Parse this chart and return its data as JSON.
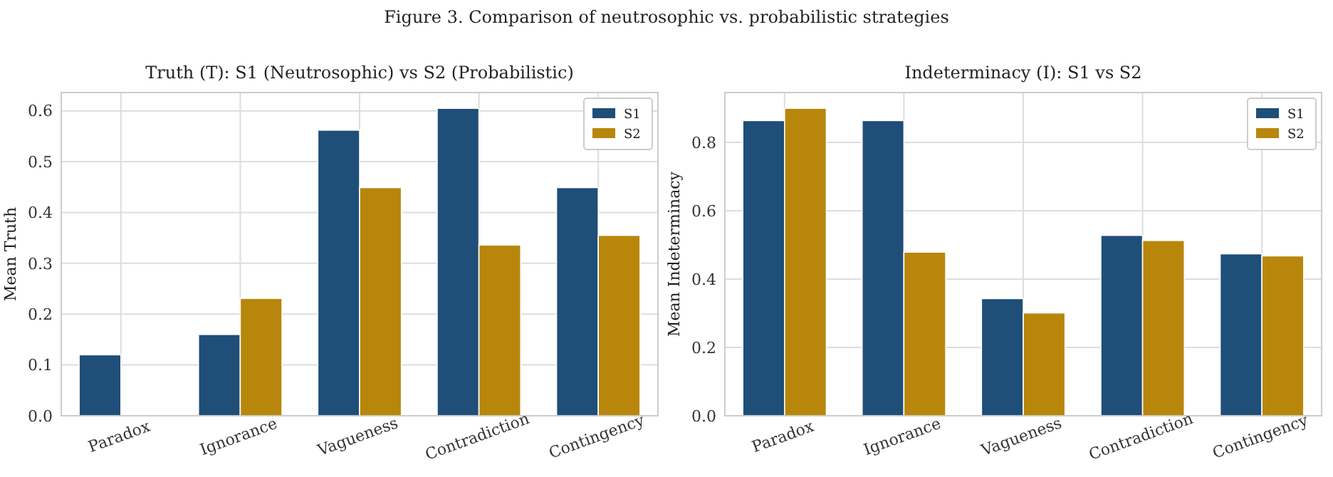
{
  "chart_data": [
    {
      "type": "bar",
      "title": "Truth (T): S1 (Neutrosophic) vs S2 (Probabilistic)",
      "ylabel": "Mean Truth",
      "annotations": [
        "Figure 3. Comparison of neutrosophic vs. probabilistic strategies"
      ],
      "categories": [
        "Paradox",
        "Ignorance",
        "Vagueness",
        "Contradiction",
        "Contingency"
      ],
      "series": [
        {
          "name": "S1",
          "color": "#1f4e79",
          "values": [
            0.12,
            0.16,
            0.562,
            0.605,
            0.449
          ]
        },
        {
          "name": "S2",
          "color": "#b8860b",
          "values": [
            0,
            0.231,
            0.449,
            0.336,
            0.355
          ]
        }
      ],
      "ylim": [
        0,
        0.636
      ],
      "yticks": [
        {
          "value": 0,
          "label": "0.0"
        },
        0.1,
        0.2,
        0.3,
        0.4,
        0.5,
        0.6
      ],
      "grid": true,
      "legend": "top right"
    },
    {
      "type": "bar",
      "title": "Indeterminacy (I): S1 vs S2",
      "ylabel": "Mean Indeterminacy",
      "categories": [
        "Paradox",
        "Ignorance",
        "Vagueness",
        "Contradiction",
        "Contingency"
      ],
      "series": [
        {
          "name": "S1",
          "color": "#1f4e79",
          "values": [
            0.864,
            0.864,
            0.343,
            0.528,
            0.474
          ]
        },
        {
          "name": "S2",
          "color": "#b8860b",
          "values": [
            0.9,
            0.479,
            0.301,
            0.513,
            0.468
          ]
        }
      ],
      "ylim": [
        0,
        0.946
      ],
      "yticks": [
        {
          "value": 0,
          "label": "0.0"
        },
        0.2,
        0.4,
        0.6,
        0.8
      ],
      "grid": true,
      "legend": "top right"
    }
  ]
}
